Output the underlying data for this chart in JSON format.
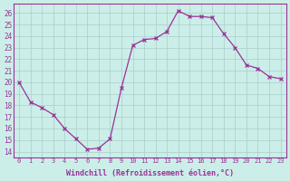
{
  "x": [
    0,
    1,
    2,
    3,
    4,
    5,
    6,
    7,
    8,
    9,
    10,
    11,
    12,
    13,
    14,
    15,
    16,
    17,
    18,
    19,
    20,
    21,
    22,
    23
  ],
  "y": [
    20.0,
    18.3,
    17.8,
    17.2,
    16.0,
    15.1,
    14.2,
    14.3,
    15.1,
    19.5,
    23.2,
    23.7,
    23.8,
    24.4,
    26.2,
    25.7,
    25.7,
    25.6,
    24.2,
    23.0,
    21.5,
    21.2,
    20.5,
    20.3
  ],
  "line_color": "#993399",
  "marker": "x",
  "marker_color": "#993399",
  "background_color": "#cceee8",
  "grid_color": "#aacccc",
  "xlabel": "Windchill (Refroidissement éolien,°C)",
  "xlabel_color": "#993399",
  "tick_color": "#993399",
  "ylim_min": 13.5,
  "ylim_max": 26.8,
  "yticks": [
    14,
    15,
    16,
    17,
    18,
    19,
    20,
    21,
    22,
    23,
    24,
    25,
    26
  ],
  "xlim_min": -0.5,
  "xlim_max": 23.5,
  "xticks": [
    0,
    1,
    2,
    3,
    4,
    5,
    6,
    7,
    8,
    9,
    10,
    11,
    12,
    13,
    14,
    15,
    16,
    17,
    18,
    19,
    20,
    21,
    22,
    23
  ],
  "spine_color": "#993399"
}
